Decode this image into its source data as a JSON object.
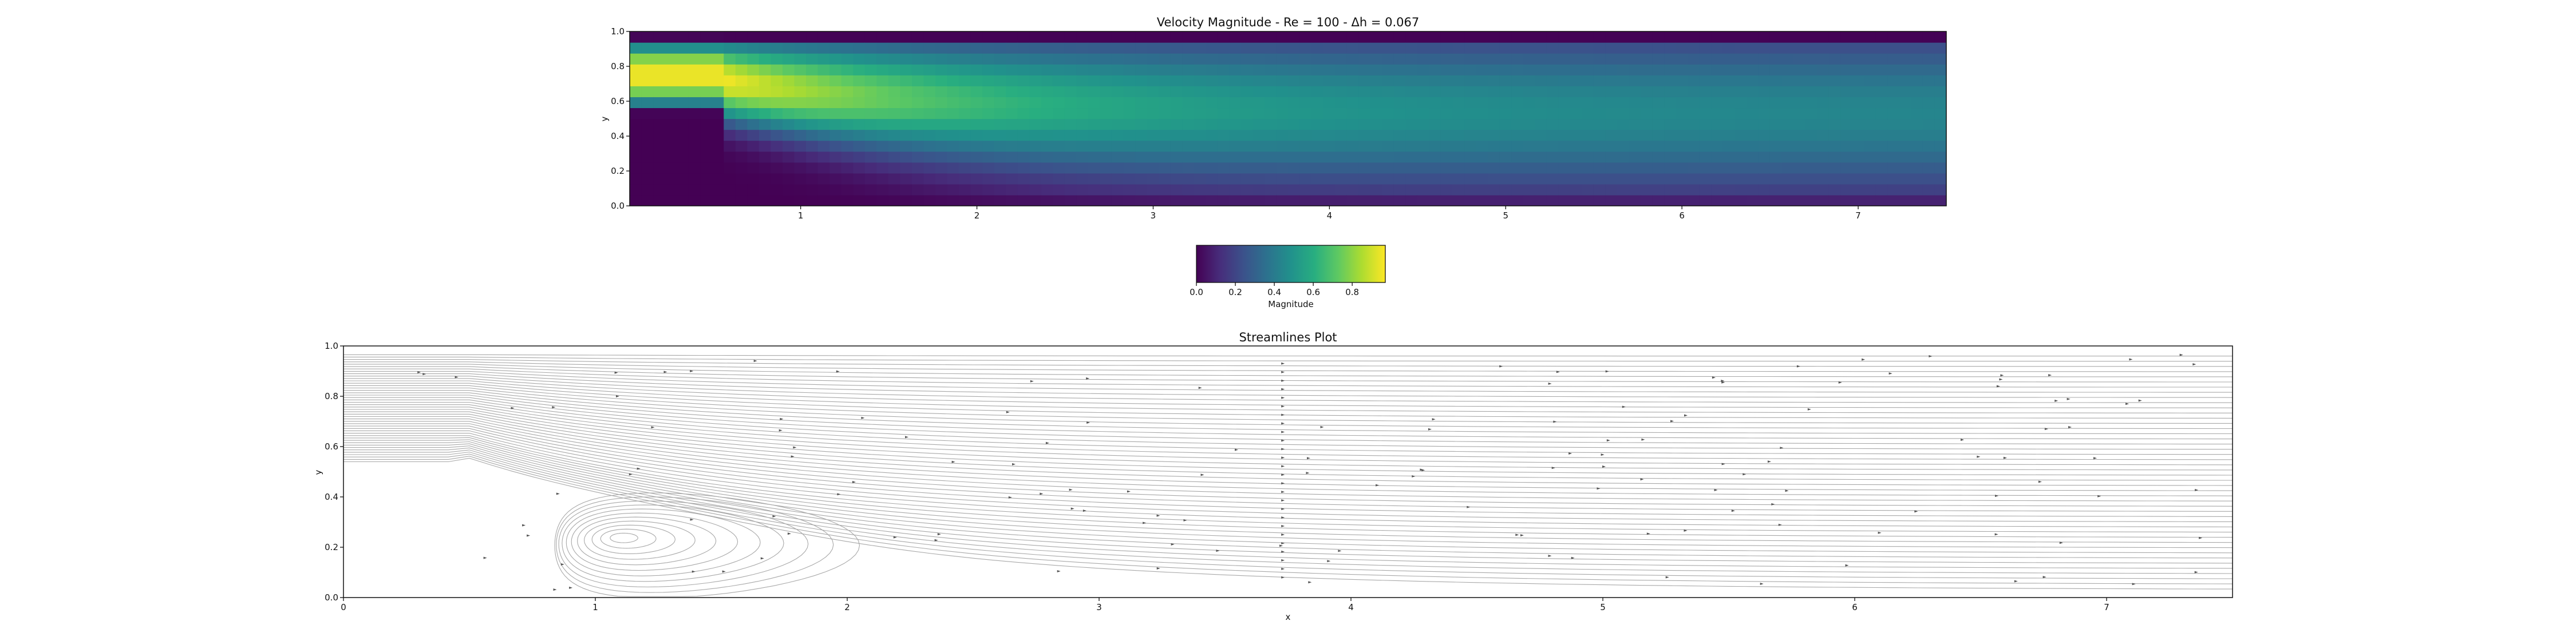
{
  "chart_data": [
    {
      "type": "heatmap",
      "title": "Velocity Magnitude - Re = 100 - Δh = 0.067",
      "xlabel": "",
      "ylabel": "y",
      "xlim": [
        0.03,
        7.5
      ],
      "ylim": [
        0.0,
        1.0
      ],
      "x_ticks": [
        "1",
        "2",
        "3",
        "4",
        "5",
        "6",
        "7"
      ],
      "y_ticks": [
        "0.0",
        "0.2",
        "0.4",
        "0.6",
        "0.8",
        "1.0"
      ],
      "colormap": "viridis",
      "grid": false,
      "domain": {
        "step_x_end": 0.55,
        "step_y_top": 0.53,
        "inlet_y": [
          0.53,
          0.97
        ]
      },
      "colorbar": {
        "label": "Magnitude",
        "range": [
          0.0,
          0.97
        ],
        "ticks": [
          "0.0",
          "0.2",
          "0.4",
          "0.6",
          "0.8"
        ]
      }
    },
    {
      "type": "line",
      "title": "Streamlines Plot",
      "xlabel": "x",
      "ylabel": "y",
      "xlim": [
        0.0,
        7.5
      ],
      "ylim": [
        0.0,
        1.0
      ],
      "x_ticks": [
        "0",
        "1",
        "2",
        "3",
        "4",
        "5",
        "6",
        "7"
      ],
      "y_ticks": [
        "0.0",
        "0.2",
        "0.4",
        "0.6",
        "0.8",
        "1.0"
      ],
      "grid": false,
      "line_color": "#a8a8a8",
      "recirculation_vortex_center": [
        1.1,
        0.24
      ],
      "reattachment_x": 1.9
    }
  ]
}
